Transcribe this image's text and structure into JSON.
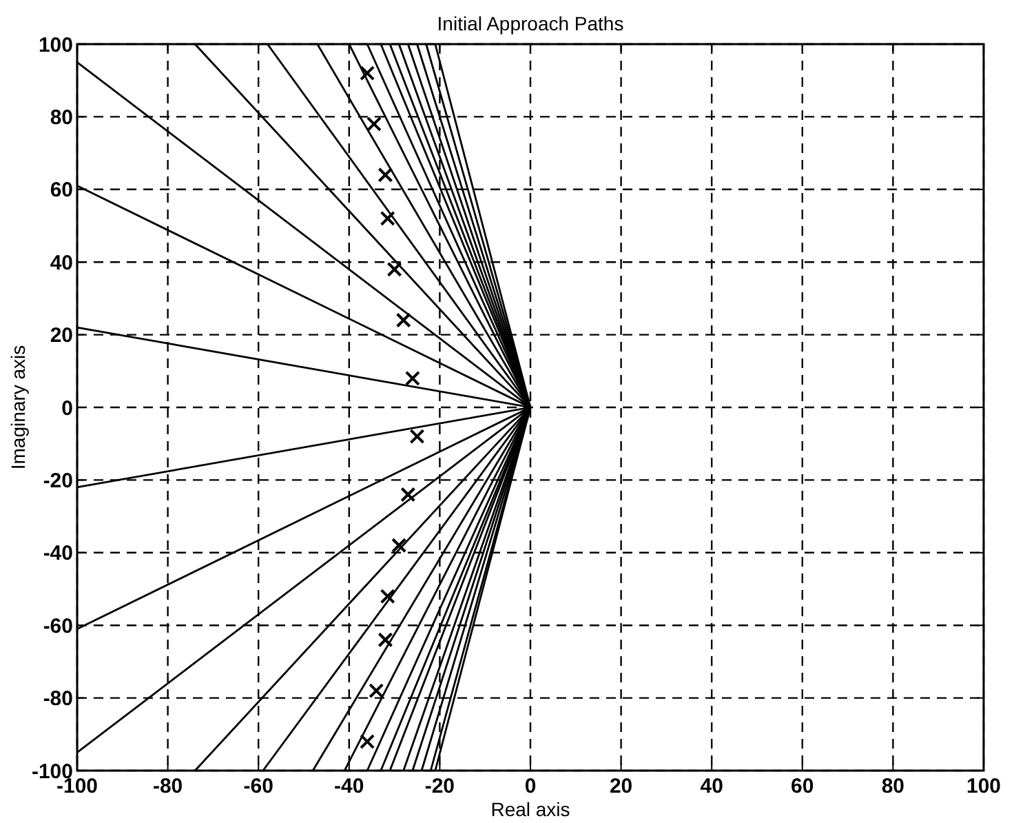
{
  "chart_data": {
    "type": "line",
    "title": "Initial Approach Paths",
    "xlabel": "Real axis",
    "ylabel": "Imaginary axis",
    "xlim": [
      -100,
      100
    ],
    "ylim": [
      -100,
      100
    ],
    "xticks": [
      -100,
      -80,
      -60,
      -40,
      -20,
      0,
      20,
      40,
      60,
      80,
      100
    ],
    "yticks": [
      -100,
      -80,
      -60,
      -40,
      -20,
      0,
      20,
      40,
      60,
      80,
      100
    ],
    "grid": true,
    "series": [
      {
        "color": "#000000",
        "x": [
          0,
          -100
        ],
        "values": [
          0,
          22
        ]
      },
      {
        "color": "#000000",
        "x": [
          0,
          -100
        ],
        "values": [
          0,
          61
        ]
      },
      {
        "color": "#000000",
        "x": [
          0,
          -100
        ],
        "values": [
          0,
          95
        ]
      },
      {
        "color": "#000000",
        "x": [
          0,
          -74
        ],
        "values": [
          0,
          100
        ]
      },
      {
        "color": "#000000",
        "x": [
          0,
          -58
        ],
        "values": [
          0,
          100
        ]
      },
      {
        "color": "#000000",
        "x": [
          0,
          -47
        ],
        "values": [
          0,
          100
        ]
      },
      {
        "color": "#000000",
        "x": [
          0,
          -40
        ],
        "values": [
          0,
          100
        ]
      },
      {
        "color": "#000000",
        "x": [
          0,
          -36
        ],
        "values": [
          0,
          100
        ]
      },
      {
        "color": "#000000",
        "x": [
          0,
          -33
        ],
        "values": [
          0,
          100
        ]
      },
      {
        "color": "#000000",
        "x": [
          0,
          -31
        ],
        "values": [
          0,
          100
        ]
      },
      {
        "color": "#000000",
        "x": [
          0,
          -29
        ],
        "values": [
          0,
          100
        ]
      },
      {
        "color": "#000000",
        "x": [
          0,
          -27
        ],
        "values": [
          0,
          100
        ]
      },
      {
        "color": "#000000",
        "x": [
          0,
          -25
        ],
        "values": [
          0,
          100
        ]
      },
      {
        "color": "#000000",
        "x": [
          0,
          -23
        ],
        "values": [
          0,
          100
        ]
      },
      {
        "color": "#000000",
        "x": [
          0,
          -21
        ],
        "values": [
          0,
          100
        ]
      },
      {
        "color": "#000000",
        "x": [
          0,
          -100
        ],
        "values": [
          0,
          -22
        ]
      },
      {
        "color": "#000000",
        "x": [
          0,
          -100
        ],
        "values": [
          0,
          -61
        ]
      },
      {
        "color": "#000000",
        "x": [
          0,
          -100
        ],
        "values": [
          0,
          -95
        ]
      },
      {
        "color": "#000000",
        "x": [
          0,
          -74
        ],
        "values": [
          0,
          -100
        ]
      },
      {
        "color": "#000000",
        "x": [
          0,
          -59
        ],
        "values": [
          0,
          -100
        ]
      },
      {
        "color": "#000000",
        "x": [
          0,
          -48
        ],
        "values": [
          0,
          -100
        ]
      },
      {
        "color": "#000000",
        "x": [
          0,
          -41
        ],
        "values": [
          0,
          -100
        ]
      },
      {
        "color": "#000000",
        "x": [
          0,
          -36
        ],
        "values": [
          0,
          -100
        ]
      },
      {
        "color": "#000000",
        "x": [
          0,
          -33
        ],
        "values": [
          0,
          -100
        ]
      },
      {
        "color": "#000000",
        "x": [
          0,
          -31
        ],
        "values": [
          0,
          -100
        ]
      },
      {
        "color": "#000000",
        "x": [
          0,
          -28
        ],
        "values": [
          0,
          -100
        ]
      },
      {
        "color": "#000000",
        "x": [
          0,
          -26
        ],
        "values": [
          0,
          -100
        ]
      },
      {
        "color": "#000000",
        "x": [
          0,
          -24
        ],
        "values": [
          0,
          -100
        ]
      },
      {
        "color": "#000000",
        "x": [
          0,
          -22
        ],
        "values": [
          0,
          -100
        ]
      },
      {
        "color": "#000000",
        "x": [
          0,
          -21
        ],
        "values": [
          0,
          -100
        ]
      },
      {
        "type": "scatter",
        "color": "#000000",
        "marker": "cross",
        "x": [
          -36,
          -34.5,
          -32,
          -31.5,
          -30,
          -28,
          -26,
          -25,
          -27,
          -29,
          -31.5,
          -32,
          -34,
          -36
        ],
        "values": [
          92,
          78,
          64,
          52,
          38,
          24,
          8,
          -8,
          -24,
          -38,
          -52,
          -64,
          -78,
          -92
        ]
      }
    ]
  }
}
